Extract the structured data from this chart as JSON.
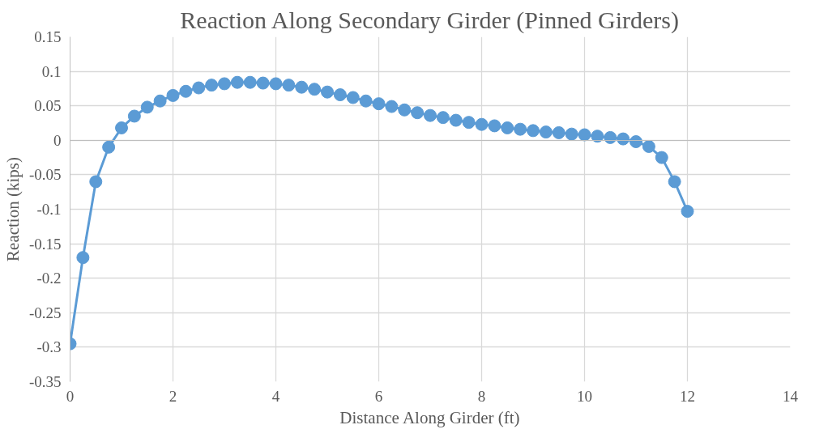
{
  "chart_data": {
    "type": "line",
    "title": "Reaction Along Secondary Girder (Pinned Girders)",
    "xlabel": "Distance Along Girder (ft)",
    "ylabel": "Reaction (kips)",
    "x": [
      0,
      0.25,
      0.5,
      0.75,
      1,
      1.25,
      1.5,
      1.75,
      2,
      2.25,
      2.5,
      2.75,
      3,
      3.25,
      3.5,
      3.75,
      4,
      4.25,
      4.5,
      4.75,
      5,
      5.25,
      5.5,
      5.75,
      6,
      6.25,
      6.5,
      6.75,
      7,
      7.25,
      7.5,
      7.75,
      8,
      8.25,
      8.5,
      8.75,
      9,
      9.25,
      9.5,
      9.75,
      10,
      10.25,
      10.5,
      10.75,
      11,
      11.25,
      11.5,
      11.75,
      12
    ],
    "series": [
      {
        "color": "#5b9bd5",
        "values": [
          -0.295,
          -0.17,
          -0.06,
          -0.01,
          0.018,
          0.035,
          0.048,
          0.057,
          0.065,
          0.071,
          0.076,
          0.08,
          0.082,
          0.084,
          0.084,
          0.083,
          0.082,
          0.08,
          0.077,
          0.074,
          0.07,
          0.066,
          0.062,
          0.057,
          0.053,
          0.049,
          0.044,
          0.04,
          0.036,
          0.033,
          0.029,
          0.026,
          0.023,
          0.021,
          0.018,
          0.016,
          0.014,
          0.012,
          0.011,
          0.009,
          0.008,
          0.006,
          0.004,
          0.002,
          -0.002,
          -0.009,
          -0.025,
          -0.06,
          -0.103
        ]
      }
    ],
    "xlim": [
      0,
      14
    ],
    "xticks": [
      0,
      2,
      4,
      6,
      8,
      10,
      12,
      14
    ],
    "ylim": [
      -0.35,
      0.15
    ],
    "yticks": [
      {
        "value": -0.35,
        "label": "-0.35"
      },
      {
        "value": -0.3,
        "label": "-0.3"
      },
      {
        "value": -0.25,
        "label": "-0.25"
      },
      {
        "value": -0.2,
        "label": "-0.2"
      },
      {
        "value": -0.15,
        "label": "-0.15"
      },
      {
        "value": -0.1,
        "label": "-0.1"
      },
      {
        "value": -0.05,
        "label": "-0.05"
      },
      {
        "value": 0,
        "label": "0"
      },
      {
        "value": 0.05,
        "label": "0.05"
      },
      {
        "value": 0.1,
        "label": "0.1"
      },
      {
        "value": 0.15,
        "label": "0.15"
      }
    ],
    "grid": true,
    "marker": "circle",
    "line_style": "solid"
  }
}
